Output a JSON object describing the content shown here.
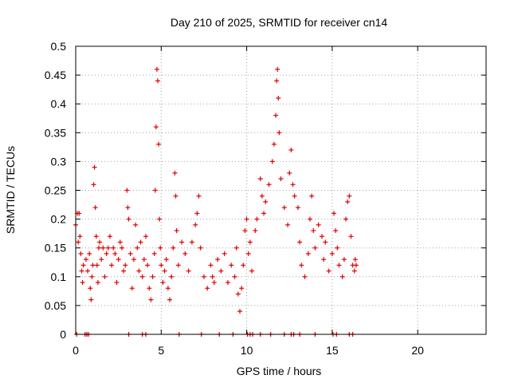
{
  "chart_data": {
    "type": "scatter",
    "title": "Day 210 of 2025, SRMTID for receiver cn14",
    "xlabel": "GPS time / hours",
    "ylabel": "SRMTID / TECUs",
    "xlim": [
      0,
      24
    ],
    "ylim": [
      0,
      0.5
    ],
    "grid": true,
    "marker": "+",
    "color": "#e00000",
    "xticks": [
      0,
      5,
      10,
      15,
      20
    ],
    "xtick_labels": [
      "0",
      "5",
      "10",
      "15",
      "20"
    ],
    "yticks": [
      0,
      0.05,
      0.1,
      0.15,
      0.2,
      0.25,
      0.3,
      0.35,
      0.4,
      0.45,
      0.5
    ],
    "ytick_labels": [
      "0",
      "0.05",
      "0.1",
      "0.15",
      "0.2",
      "0.25",
      "0.3",
      "0.35",
      "0.4",
      "0.45",
      "0.5"
    ],
    "series": [
      {
        "name": "SRMTID",
        "points": [
          [
            0.0,
            0.19
          ],
          [
            0.1,
            0.21
          ],
          [
            0.15,
            0.16
          ],
          [
            0.2,
            0.21
          ],
          [
            0.25,
            0.17
          ],
          [
            0.3,
            0.14
          ],
          [
            0.35,
            0.11
          ],
          [
            0.4,
            0.09
          ],
          [
            0.45,
            0.12
          ],
          [
            0.6,
            0.13
          ],
          [
            0.7,
            0.11
          ],
          [
            0.8,
            0.14
          ],
          [
            0.85,
            0.08
          ],
          [
            0.9,
            0.06
          ],
          [
            0.95,
            0.1
          ],
          [
            1.0,
            0.12
          ],
          [
            1.05,
            0.26
          ],
          [
            1.1,
            0.29
          ],
          [
            1.15,
            0.22
          ],
          [
            1.2,
            0.17
          ],
          [
            1.25,
            0.12
          ],
          [
            1.3,
            0.09
          ],
          [
            1.35,
            0.15
          ],
          [
            1.4,
            0.16
          ],
          [
            1.5,
            0.13
          ],
          [
            1.6,
            0.15
          ],
          [
            1.7,
            0.1
          ],
          [
            1.8,
            0.14
          ],
          [
            1.9,
            0.15
          ],
          [
            2.0,
            0.17
          ],
          [
            2.1,
            0.12
          ],
          [
            2.2,
            0.15
          ],
          [
            2.3,
            0.14
          ],
          [
            2.4,
            0.09
          ],
          [
            2.5,
            0.13
          ],
          [
            2.6,
            0.16
          ],
          [
            2.7,
            0.15
          ],
          [
            2.8,
            0.11
          ],
          [
            2.9,
            0.12
          ],
          [
            3.0,
            0.25
          ],
          [
            3.05,
            0.22
          ],
          [
            3.1,
            0.2
          ],
          [
            3.2,
            0.14
          ],
          [
            3.3,
            0.08
          ],
          [
            3.4,
            0.13
          ],
          [
            3.5,
            0.19
          ],
          [
            3.6,
            0.15
          ],
          [
            3.7,
            0.11
          ],
          [
            3.8,
            0.16
          ],
          [
            3.9,
            0.1
          ],
          [
            4.0,
            0.13
          ],
          [
            4.1,
            0.17
          ],
          [
            4.2,
            0.12
          ],
          [
            4.3,
            0.08
          ],
          [
            4.4,
            0.06
          ],
          [
            4.5,
            0.1
          ],
          [
            4.6,
            0.14
          ],
          [
            4.65,
            0.25
          ],
          [
            4.7,
            0.36
          ],
          [
            4.75,
            0.46
          ],
          [
            4.8,
            0.44
          ],
          [
            4.85,
            0.33
          ],
          [
            4.9,
            0.2
          ],
          [
            4.95,
            0.15
          ],
          [
            5.0,
            0.12
          ],
          [
            5.1,
            0.09
          ],
          [
            5.2,
            0.11
          ],
          [
            5.3,
            0.13
          ],
          [
            5.4,
            0.08
          ],
          [
            5.5,
            0.06
          ],
          [
            5.6,
            0.1
          ],
          [
            5.7,
            0.15
          ],
          [
            5.8,
            0.28
          ],
          [
            5.85,
            0.24
          ],
          [
            5.9,
            0.18
          ],
          [
            6.0,
            0.12
          ],
          [
            6.2,
            0.16
          ],
          [
            6.4,
            0.14
          ],
          [
            6.6,
            0.11
          ],
          [
            6.8,
            0.16
          ],
          [
            7.0,
            0.19
          ],
          [
            7.1,
            0.21
          ],
          [
            7.2,
            0.24
          ],
          [
            7.3,
            0.15
          ],
          [
            7.5,
            0.1
          ],
          [
            7.7,
            0.08
          ],
          [
            7.9,
            0.12
          ],
          [
            8.0,
            0.1
          ],
          [
            8.1,
            0.09
          ],
          [
            8.3,
            0.13
          ],
          [
            8.5,
            0.11
          ],
          [
            8.7,
            0.14
          ],
          [
            8.9,
            0.09
          ],
          [
            9.1,
            0.12
          ],
          [
            9.3,
            0.1
          ],
          [
            9.4,
            0.15
          ],
          [
            9.5,
            0.07
          ],
          [
            9.6,
            0.04
          ],
          [
            9.7,
            0.08
          ],
          [
            9.8,
            0.12
          ],
          [
            9.9,
            0.18
          ],
          [
            10.0,
            0.2
          ],
          [
            10.1,
            0.14
          ],
          [
            10.2,
            0.16
          ],
          [
            10.3,
            0.11
          ],
          [
            10.5,
            0.18
          ],
          [
            10.6,
            0.2
          ],
          [
            10.8,
            0.27
          ],
          [
            10.9,
            0.24
          ],
          [
            11.0,
            0.21
          ],
          [
            11.1,
            0.23
          ],
          [
            11.3,
            0.26
          ],
          [
            11.5,
            0.3
          ],
          [
            11.6,
            0.33
          ],
          [
            11.7,
            0.38
          ],
          [
            11.75,
            0.44
          ],
          [
            11.8,
            0.46
          ],
          [
            11.85,
            0.41
          ],
          [
            11.9,
            0.35
          ],
          [
            12.0,
            0.27
          ],
          [
            12.2,
            0.22
          ],
          [
            12.4,
            0.19
          ],
          [
            12.5,
            0.28
          ],
          [
            12.6,
            0.32
          ],
          [
            12.7,
            0.26
          ],
          [
            12.8,
            0.24
          ],
          [
            13.0,
            0.22
          ],
          [
            13.1,
            0.16
          ],
          [
            13.2,
            0.12
          ],
          [
            13.4,
            0.1
          ],
          [
            13.6,
            0.14
          ],
          [
            13.7,
            0.2
          ],
          [
            13.8,
            0.24
          ],
          [
            13.9,
            0.18
          ],
          [
            14.0,
            0.15
          ],
          [
            14.2,
            0.19
          ],
          [
            14.4,
            0.17
          ],
          [
            14.5,
            0.13
          ],
          [
            14.6,
            0.16
          ],
          [
            14.8,
            0.11
          ],
          [
            15.0,
            0.14
          ],
          [
            15.1,
            0.21
          ],
          [
            15.2,
            0.18
          ],
          [
            15.3,
            0.15
          ],
          [
            15.4,
            0.12
          ],
          [
            15.6,
            0.1
          ],
          [
            15.7,
            0.13
          ],
          [
            15.8,
            0.2
          ],
          [
            15.9,
            0.23
          ],
          [
            16.0,
            0.24
          ],
          [
            16.1,
            0.17
          ],
          [
            16.2,
            0.12
          ],
          [
            16.3,
            0.11
          ],
          [
            16.35,
            0.13
          ],
          [
            16.4,
            0.12
          ],
          [
            0.05,
            0.0
          ],
          [
            0.55,
            0.0
          ],
          [
            0.65,
            0.0
          ],
          [
            0.75,
            0.0
          ],
          [
            3.1,
            0.0
          ],
          [
            3.9,
            0.0
          ],
          [
            4.1,
            0.0
          ],
          [
            6.05,
            0.0
          ],
          [
            7.35,
            0.0
          ],
          [
            8.4,
            0.0
          ],
          [
            9.2,
            0.0
          ],
          [
            10.05,
            0.0
          ],
          [
            10.2,
            0.0
          ],
          [
            10.35,
            0.0
          ],
          [
            10.8,
            0.0
          ],
          [
            11.4,
            0.0
          ],
          [
            12.2,
            0.0
          ],
          [
            12.6,
            0.0
          ],
          [
            12.75,
            0.0
          ],
          [
            13.1,
            0.0
          ],
          [
            14.0,
            0.0
          ],
          [
            15.05,
            0.0
          ],
          [
            15.25,
            0.0
          ],
          [
            16.0,
            0.0
          ],
          [
            16.2,
            0.0
          ]
        ]
      }
    ]
  }
}
